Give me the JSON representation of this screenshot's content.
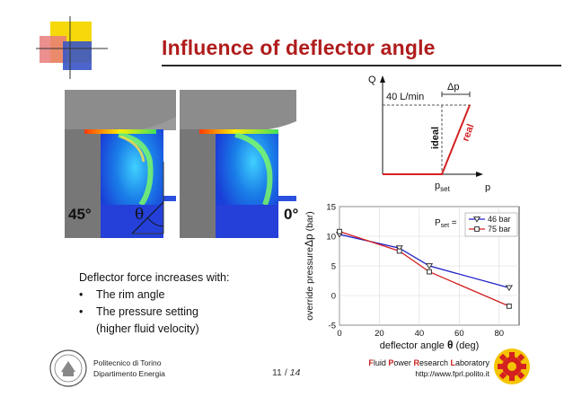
{
  "slide": {
    "title": "Influence of deflector angle",
    "label_left_angle": "45°",
    "label_theta": "θ",
    "label_right_angle": "0°",
    "bullets_heading": "Deflector force increases with:",
    "bullets": [
      "The rim angle",
      "The pressure setting"
    ],
    "bullet_cont": "(higher fluid velocity)",
    "bullet_marker": "•",
    "footer_institution_line1": "Politecnico di Torino",
    "footer_institution_line2": "Dipartimento Energia",
    "page_current": "11",
    "page_sep": " / ",
    "page_total": "14",
    "lab_name": [
      {
        "cap": "F",
        "rest": "luid "
      },
      {
        "cap": "P",
        "rest": "ower "
      },
      {
        "cap": "R",
        "rest": "esearch "
      },
      {
        "cap": "L",
        "rest": "aboratory"
      }
    ],
    "lab_url": "http://www.fprl.polito.it",
    "colors": {
      "title": "#b01c1c",
      "accent_yellow": "#f5d90a",
      "accent_blue": "#1f3fbf",
      "accent_red": "#c81e1e"
    }
  },
  "pq_diagram": {
    "y_axis": "Q",
    "x_axis": "p",
    "flow_label": "40 L/min",
    "delta_label": "Δp",
    "ideal_label": "ideal",
    "real_label": "real",
    "pset_label": "p",
    "pset_sub": "set"
  },
  "chart_data": {
    "type": "line",
    "xlabel": "deflector angle",
    "xlabel_theta": "θ",
    "xlabel_unit": "(deg)",
    "ylabel": "override pressure",
    "ylabel_delta": "Δp",
    "ylabel_unit": "(bar)",
    "xlim": [
      0,
      90
    ],
    "ylim": [
      -5,
      15
    ],
    "x_ticks": [
      0,
      20,
      40,
      60,
      80
    ],
    "y_ticks": [
      -5,
      0,
      5,
      10,
      15
    ],
    "grid": true,
    "legend_title": "P",
    "legend_title_sub": "set",
    "legend_title_eq": " =",
    "legend_position": "top-right",
    "series": [
      {
        "name": "46 bar",
        "color": "#2020c8",
        "marker": "triangle-down",
        "x": [
          0,
          30,
          45,
          85
        ],
        "y": [
          10.3,
          8.0,
          5.0,
          1.3
        ]
      },
      {
        "name": "75 bar",
        "color": "#d42020",
        "marker": "square",
        "x": [
          0,
          30,
          45,
          85
        ],
        "y": [
          10.8,
          7.5,
          4.0,
          -1.8
        ]
      }
    ]
  }
}
